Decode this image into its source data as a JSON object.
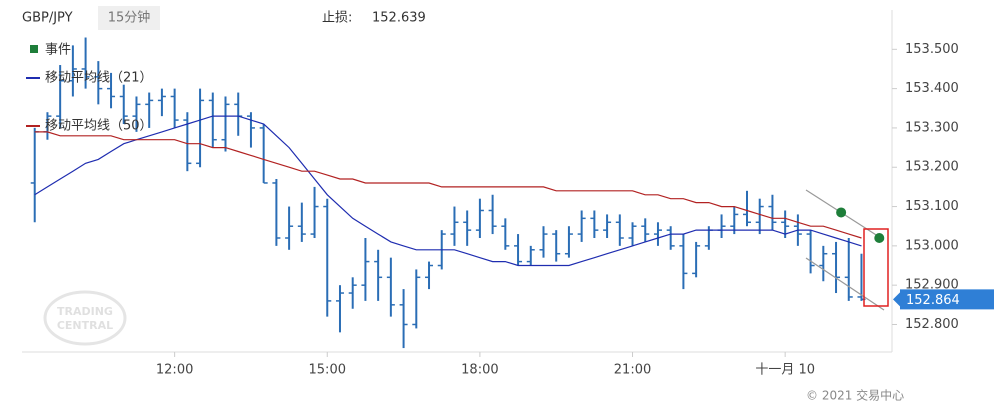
{
  "header": {
    "symbol": "GBP/JPY",
    "interval": "15分钟",
    "stop_label": "止损:",
    "stop_value": "152.639"
  },
  "footer": "© 2021 交易中心",
  "watermark": [
    "TRADING",
    "CENTRAL"
  ],
  "chart_data": {
    "type": "ohlc",
    "x": [
      9.25,
      9.5,
      9.75,
      10,
      10.25,
      10.5,
      10.75,
      11,
      11.25,
      11.5,
      11.75,
      12,
      12.25,
      12.5,
      12.75,
      13,
      13.25,
      13.5,
      13.75,
      14,
      14.25,
      14.5,
      14.75,
      15,
      15.25,
      15.5,
      15.75,
      16,
      16.25,
      16.5,
      16.75,
      17,
      17.25,
      17.5,
      17.75,
      18,
      18.25,
      18.5,
      18.75,
      19,
      19.25,
      19.5,
      19.75,
      20,
      20.25,
      20.5,
      20.75,
      21,
      21.25,
      21.5,
      21.75,
      22,
      22.25,
      22.5,
      22.75,
      23,
      23.25,
      23.5,
      23.75,
      24,
      24.25,
      24.5,
      24.75,
      25,
      25.25,
      25.5
    ],
    "open": [
      153.16,
      153.29,
      153.33,
      153.42,
      153.45,
      153.43,
      153.4,
      153.38,
      153.33,
      153.36,
      153.37,
      153.38,
      153.32,
      153.21,
      153.37,
      153.27,
      153.36,
      153.33,
      153.3,
      153.16,
      153.02,
      153.05,
      153.03,
      153.1,
      152.86,
      152.88,
      152.9,
      152.96,
      152.92,
      152.85,
      152.8,
      152.92,
      152.95,
      153.03,
      153.06,
      153.04,
      153.09,
      153.05,
      153.0,
      152.96,
      152.99,
      153.03,
      152.98,
      153.03,
      153.07,
      153.04,
      153.06,
      153.02,
      153.05,
      153.03,
      153.04,
      153.0,
      152.93,
      153.0,
      153.04,
      153.05,
      153.08,
      153.06,
      153.1,
      153.06,
      153.05,
      153.03,
      152.95,
      152.98,
      152.92,
      152.87
    ],
    "high": [
      153.3,
      153.34,
      153.46,
      153.51,
      153.53,
      153.47,
      153.44,
      153.41,
      153.38,
      153.39,
      153.4,
      153.4,
      153.34,
      153.4,
      153.39,
      153.38,
      153.39,
      153.34,
      153.31,
      153.17,
      153.1,
      153.11,
      153.15,
      153.12,
      152.9,
      152.92,
      153.02,
      152.99,
      152.97,
      152.89,
      152.94,
      152.96,
      153.04,
      153.1,
      153.09,
      153.12,
      153.13,
      153.07,
      153.03,
      153.0,
      153.05,
      153.04,
      153.05,
      153.09,
      153.09,
      153.08,
      153.08,
      153.06,
      153.07,
      153.06,
      153.05,
      153.03,
      153.01,
      153.05,
      153.08,
      153.1,
      153.14,
      153.12,
      153.13,
      153.09,
      153.08,
      153.04,
      153.0,
      153.01,
      153.02,
      152.98
    ],
    "low": [
      153.06,
      153.27,
      153.3,
      153.38,
      153.4,
      153.36,
      153.35,
      153.31,
      153.29,
      153.3,
      153.33,
      153.3,
      153.19,
      153.2,
      153.25,
      153.24,
      153.28,
      153.25,
      153.16,
      153.0,
      152.99,
      153.01,
      153.02,
      152.82,
      152.78,
      152.84,
      152.86,
      152.86,
      152.82,
      152.74,
      152.79,
      152.89,
      152.94,
      153.0,
      153.0,
      153.02,
      153.03,
      152.99,
      152.95,
      152.95,
      152.97,
      152.96,
      152.97,
      153.01,
      153.02,
      153.02,
      153.0,
      153.0,
      153.01,
      153.0,
      152.99,
      152.89,
      152.92,
      152.99,
      153.02,
      153.03,
      153.05,
      153.03,
      153.04,
      153.02,
      153.0,
      152.93,
      152.91,
      152.88,
      152.86,
      152.86
    ],
    "close": [
      153.29,
      153.33,
      153.42,
      153.45,
      153.43,
      153.4,
      153.38,
      153.33,
      153.36,
      153.37,
      153.38,
      153.32,
      153.21,
      153.37,
      153.27,
      153.36,
      153.33,
      153.3,
      153.16,
      153.02,
      153.05,
      153.03,
      153.1,
      152.86,
      152.88,
      152.9,
      152.96,
      152.92,
      152.85,
      152.8,
      152.92,
      152.95,
      153.03,
      153.06,
      153.04,
      153.09,
      153.05,
      153.0,
      152.96,
      152.99,
      153.03,
      152.98,
      153.03,
      153.07,
      153.04,
      153.06,
      153.02,
      153.05,
      153.03,
      153.04,
      153.0,
      152.93,
      153.0,
      153.04,
      153.05,
      153.08,
      153.06,
      153.1,
      153.06,
      153.05,
      153.03,
      152.95,
      152.98,
      152.92,
      152.87,
      152.864
    ],
    "color": "#2a6db5",
    "series": [
      {
        "name": "移动平均线（21）",
        "color": "#1f2db0",
        "values": [
          153.13,
          153.15,
          153.17,
          153.19,
          153.21,
          153.22,
          153.24,
          153.26,
          153.27,
          153.28,
          153.29,
          153.3,
          153.31,
          153.32,
          153.33,
          153.33,
          153.33,
          153.32,
          153.31,
          153.28,
          153.25,
          153.21,
          153.17,
          153.13,
          153.1,
          153.07,
          153.05,
          153.03,
          153.01,
          153.0,
          152.99,
          152.99,
          152.99,
          152.99,
          152.98,
          152.97,
          152.96,
          152.96,
          152.95,
          152.95,
          152.95,
          152.95,
          152.95,
          152.96,
          152.97,
          152.98,
          152.99,
          153.0,
          153.01,
          153.02,
          153.03,
          153.03,
          153.04,
          153.04,
          153.04,
          153.04,
          153.04,
          153.04,
          153.04,
          153.03,
          153.04,
          153.04,
          153.03,
          153.02,
          153.01,
          153.0
        ]
      },
      {
        "name": "移动平均线（50）",
        "color": "#b22222",
        "values": [
          153.29,
          153.29,
          153.28,
          153.28,
          153.28,
          153.28,
          153.28,
          153.27,
          153.27,
          153.27,
          153.27,
          153.27,
          153.26,
          153.26,
          153.25,
          153.25,
          153.24,
          153.23,
          153.22,
          153.21,
          153.2,
          153.19,
          153.19,
          153.18,
          153.17,
          153.17,
          153.16,
          153.16,
          153.16,
          153.16,
          153.16,
          153.16,
          153.15,
          153.15,
          153.15,
          153.15,
          153.15,
          153.15,
          153.15,
          153.15,
          153.15,
          153.14,
          153.14,
          153.14,
          153.14,
          153.14,
          153.14,
          153.14,
          153.13,
          153.13,
          153.12,
          153.12,
          153.11,
          153.11,
          153.1,
          153.1,
          153.09,
          153.08,
          153.07,
          153.07,
          153.06,
          153.05,
          153.05,
          153.04,
          153.03,
          153.02
        ]
      }
    ],
    "events": {
      "name": "事件",
      "color": "#1e7e3a",
      "x": [
        25.1,
        25.85
      ],
      "values": [
        153.085,
        153.02
      ]
    },
    "last_price": {
      "value": 152.864,
      "label": "152.864"
    },
    "xlim": [
      9,
      26.1
    ],
    "xticks": [
      {
        "value": 12,
        "label": "12:00"
      },
      {
        "value": 15,
        "label": "15:00"
      },
      {
        "value": 18,
        "label": "18:00"
      },
      {
        "value": 21,
        "label": "21:00"
      },
      {
        "value": 24,
        "label": "十一月 10"
      }
    ],
    "ylim": [
      152.73,
      153.6
    ],
    "yticks": [
      {
        "value": 152.8,
        "label": "152.800"
      },
      {
        "value": 152.9,
        "label": "152.900"
      },
      {
        "value": 153.0,
        "label": "153.000"
      },
      {
        "value": 153.1,
        "label": "153.100"
      },
      {
        "value": 153.2,
        "label": "153.200"
      },
      {
        "value": 153.3,
        "label": "153.300"
      },
      {
        "value": 153.4,
        "label": "153.400"
      },
      {
        "value": 153.5,
        "label": "153.500"
      }
    ]
  }
}
